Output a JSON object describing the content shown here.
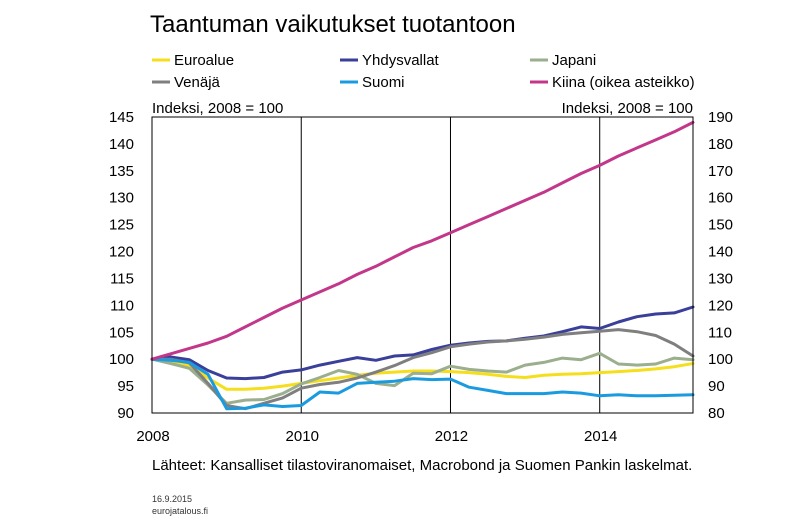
{
  "chart_data": {
    "type": "line",
    "title": "Taantuman vaikutukset tuotantoon",
    "left_axis": {
      "label": "Indeksi, 2008 = 100",
      "ylim": [
        90,
        145
      ],
      "ticks": [
        "145",
        "140",
        "135",
        "130",
        "125",
        "120",
        "115",
        "110",
        "105",
        "100",
        "95",
        "90"
      ]
    },
    "right_axis": {
      "label": "Indeksi, 2008 = 100",
      "ylim": [
        80,
        190
      ],
      "ticks": [
        "190",
        "180",
        "170",
        "160",
        "150",
        "140",
        "130",
        "120",
        "110",
        "100",
        "90",
        "80"
      ]
    },
    "x_ticks": [
      "2008",
      "2010",
      "2012",
      "2014"
    ],
    "xlim": [
      2008,
      2015.25
    ],
    "grid": "vertical",
    "legend_position": "top",
    "series": [
      {
        "name": "Euroalue",
        "color": "#f5de1b",
        "axis": "left",
        "x": [
          2008,
          2008.25,
          2008.5,
          2008.75,
          2009,
          2009.25,
          2009.5,
          2009.75,
          2010,
          2010.25,
          2010.5,
          2010.75,
          2011,
          2011.25,
          2011.5,
          2011.75,
          2012,
          2012.25,
          2012.5,
          2012.75,
          2013,
          2013.25,
          2013.5,
          2013.75,
          2014,
          2014.25,
          2014.5,
          2014.75,
          2015,
          2015.25
        ],
        "values": [
          100,
          99.5,
          98.8,
          96.5,
          94.4,
          94.4,
          94.6,
          95,
          95.5,
          96,
          96.5,
          97,
          97.4,
          97.6,
          97.8,
          97.8,
          97.7,
          97.5,
          97.2,
          96.8,
          96.6,
          97,
          97.2,
          97.3,
          97.5,
          97.7,
          97.9,
          98.2,
          98.6,
          99.2
        ]
      },
      {
        "name": "Yhdysvallat",
        "color": "#3a3f99",
        "axis": "left",
        "x": [
          2008,
          2008.25,
          2008.5,
          2008.75,
          2009,
          2009.25,
          2009.5,
          2009.75,
          2010,
          2010.25,
          2010.5,
          2010.75,
          2011,
          2011.25,
          2011.5,
          2011.75,
          2012,
          2012.25,
          2012.5,
          2012.75,
          2013,
          2013.25,
          2013.5,
          2013.75,
          2014,
          2014.25,
          2014.5,
          2014.75,
          2015,
          2015.25
        ],
        "values": [
          100,
          100.4,
          99.9,
          97.9,
          96.5,
          96.4,
          96.6,
          97.6,
          98,
          98.9,
          99.6,
          100.3,
          99.8,
          100.6,
          100.8,
          101.8,
          102.6,
          103,
          103.3,
          103.4,
          103.9,
          104.3,
          105.1,
          106,
          105.7,
          106.9,
          107.9,
          108.4,
          108.6,
          109.7
        ]
      },
      {
        "name": "Japani",
        "color": "#9bae8d",
        "axis": "left",
        "x": [
          2008,
          2008.25,
          2008.5,
          2008.75,
          2009,
          2009.25,
          2009.5,
          2009.75,
          2010,
          2010.25,
          2010.5,
          2010.75,
          2011,
          2011.25,
          2011.5,
          2011.75,
          2012,
          2012.25,
          2012.5,
          2012.75,
          2013,
          2013.25,
          2013.5,
          2013.75,
          2014,
          2014.25,
          2014.5,
          2014.75,
          2015,
          2015.25
        ],
        "values": [
          100,
          99.2,
          98.3,
          95.2,
          91.8,
          92.4,
          92.5,
          93.6,
          95.4,
          96.6,
          97.9,
          97.2,
          95.5,
          95.1,
          97.4,
          97.3,
          98.7,
          98.1,
          97.8,
          97.6,
          98.9,
          99.4,
          100.2,
          99.9,
          101.1,
          99.1,
          98.9,
          99.1,
          100.2,
          99.9
        ]
      },
      {
        "name": "Venäjä",
        "color": "#7f7f7f",
        "axis": "left",
        "x": [
          2008,
          2008.25,
          2008.5,
          2008.75,
          2009,
          2009.25,
          2009.5,
          2009.75,
          2010,
          2010.25,
          2010.5,
          2010.75,
          2011,
          2011.25,
          2011.5,
          2011.75,
          2012,
          2012.25,
          2012.5,
          2012.75,
          2013,
          2013.25,
          2013.5,
          2013.75,
          2014,
          2014.25,
          2014.5,
          2014.75,
          2015,
          2015.25
        ],
        "values": [
          100,
          100,
          99.3,
          95.5,
          91.4,
          90.8,
          91.8,
          92.8,
          94.6,
          95.3,
          95.7,
          96.5,
          97.6,
          98.8,
          100.3,
          101.2,
          102.3,
          102.8,
          103.2,
          103.4,
          103.7,
          104.1,
          104.6,
          104.9,
          105.2,
          105.5,
          105.1,
          104.4,
          102.8,
          100.6
        ]
      },
      {
        "name": "Suomi",
        "color": "#1a9be0",
        "axis": "left",
        "x": [
          2008,
          2008.25,
          2008.5,
          2008.75,
          2009,
          2009.25,
          2009.5,
          2009.75,
          2010,
          2010.25,
          2010.5,
          2010.75,
          2011,
          2011.25,
          2011.5,
          2011.75,
          2012,
          2012.25,
          2012.5,
          2012.75,
          2013,
          2013.25,
          2013.5,
          2013.75,
          2014,
          2014.25,
          2014.5,
          2014.75,
          2015,
          2015.25
        ],
        "values": [
          100,
          99.8,
          99.4,
          97.2,
          90.8,
          90.9,
          91.5,
          91.2,
          91.4,
          93.9,
          93.7,
          95.5,
          95.7,
          95.9,
          96.4,
          96.2,
          96.3,
          94.8,
          94.2,
          93.6,
          93.6,
          93.6,
          93.9,
          93.7,
          93.2,
          93.4,
          93.2,
          93.2,
          93.3,
          93.4
        ]
      },
      {
        "name": "Kiina (oikea asteikko)",
        "color": "#c3378a",
        "axis": "right",
        "x": [
          2008,
          2008.25,
          2008.5,
          2008.75,
          2009,
          2009.25,
          2009.5,
          2009.75,
          2010,
          2010.25,
          2010.5,
          2010.75,
          2011,
          2011.25,
          2011.5,
          2011.75,
          2012,
          2012.25,
          2012.5,
          2012.75,
          2013,
          2013.25,
          2013.5,
          2013.75,
          2014,
          2014.25,
          2014.5,
          2014.75,
          2015,
          2015.25
        ],
        "values": [
          100,
          102,
          104,
          106,
          108.5,
          112,
          115.5,
          119,
          122,
          125,
          128,
          131.5,
          134.5,
          138,
          141.5,
          144,
          147,
          150,
          153,
          156,
          159,
          162,
          165.5,
          169,
          172,
          175.5,
          178.5,
          181.5,
          184.5,
          188
        ]
      }
    ]
  },
  "source_text": "Lähteet: Kansalliset tilastoviranomaiset, Macrobond ja Suomen Pankin laskelmat.",
  "date_text": "16.9.2015",
  "site_text": "eurojatalous.fi"
}
